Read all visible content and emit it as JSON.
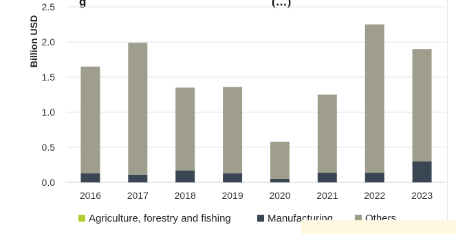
{
  "chart_data": {
    "type": "bar",
    "stacked": true,
    "title": "g",
    "title_suffix": "(…)",
    "xlabel": "",
    "ylabel": "Billion USD",
    "ylim": [
      0,
      2.5
    ],
    "yticks": [
      "0.0",
      "0.5",
      "1.0",
      "1.5",
      "2.0",
      "2.5"
    ],
    "grid": "horizontal",
    "legend_position": "bottom",
    "categories": [
      "2016",
      "2017",
      "2018",
      "2019",
      "2020",
      "2021",
      "2022",
      "2023"
    ],
    "series": [
      {
        "name": "Agriculture, forestry and fishing",
        "color": "#b5c931",
        "values": [
          0,
          0,
          0,
          0,
          0,
          0,
          0,
          0
        ]
      },
      {
        "name": "Manufacturing",
        "color": "#3a4653",
        "values": [
          0.13,
          0.11,
          0.17,
          0.13,
          0.05,
          0.14,
          0.14,
          0.3
        ]
      },
      {
        "name": "Others",
        "color": "#9f9e8d",
        "values": [
          1.52,
          1.88,
          1.18,
          1.23,
          0.53,
          1.11,
          2.11,
          1.6
        ]
      }
    ]
  }
}
